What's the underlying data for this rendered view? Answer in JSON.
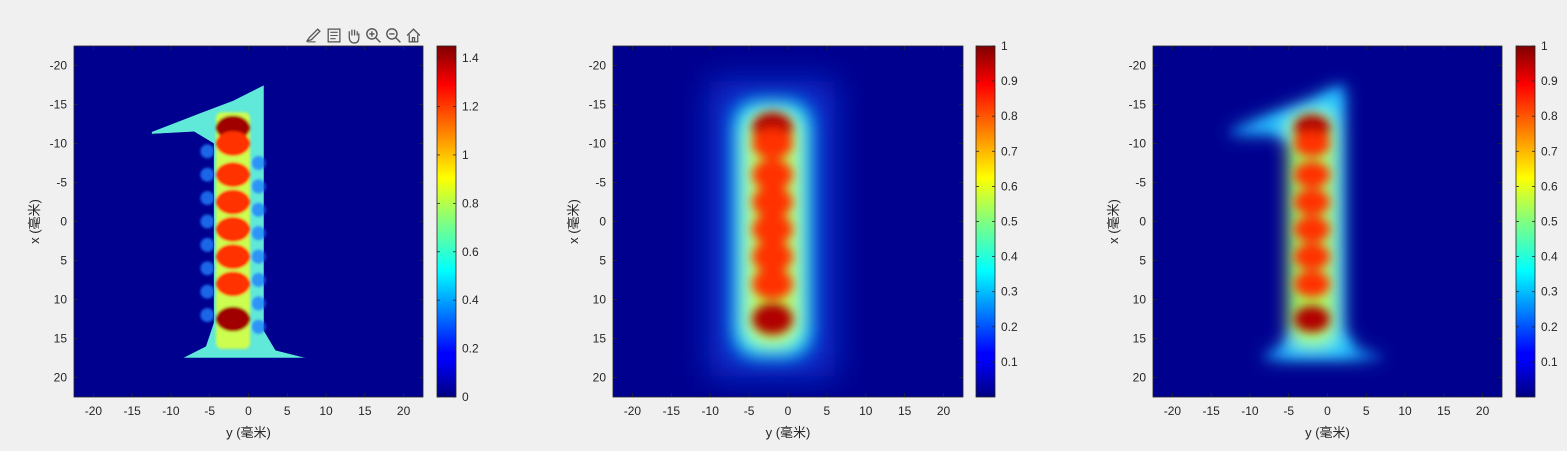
{
  "toolbar": {
    "tools": [
      {
        "icon": "brush-icon",
        "name": "brush"
      },
      {
        "icon": "datatip-icon",
        "name": "data-tips"
      },
      {
        "icon": "pan-hand-icon",
        "name": "pan"
      },
      {
        "icon": "zoom-in-icon",
        "name": "zoom-in"
      },
      {
        "icon": "zoom-out-icon",
        "name": "zoom-out"
      },
      {
        "icon": "home-icon",
        "name": "restore-view"
      }
    ]
  },
  "chart_data": [
    {
      "type": "heatmap",
      "xlabel": "y (毫米)",
      "ylabel": "x (毫米)",
      "xlim": [
        -22.5,
        22.5
      ],
      "ylim": [
        -22.5,
        22.5
      ],
      "y_reversed": true,
      "xticks": [
        "-20",
        "-15",
        "-10",
        "-5",
        "0",
        "5",
        "10",
        "15",
        "20"
      ],
      "yticks": [
        "-20",
        "-15",
        "-10",
        "-5",
        "0",
        "5",
        "10",
        "15",
        "20"
      ],
      "colormap": "jet",
      "clim": [
        0,
        1.45
      ],
      "colorbar_ticks": [
        "0",
        "0.2",
        "0.4",
        "0.6",
        "0.8",
        "1",
        "1.2",
        "1.4"
      ],
      "description": "sharp digit '1' mask, peaks ~1.45 along center x from -12 to 13"
    },
    {
      "type": "heatmap",
      "xlabel": "y (毫米)",
      "ylabel": "x (毫米)",
      "xlim": [
        -22.5,
        22.5
      ],
      "ylim": [
        -22.5,
        22.5
      ],
      "y_reversed": true,
      "xticks": [
        "-20",
        "-15",
        "-10",
        "-5",
        "0",
        "5",
        "10",
        "15",
        "20"
      ],
      "yticks": [
        "-20",
        "-15",
        "-10",
        "-5",
        "0",
        "5",
        "10",
        "15",
        "20"
      ],
      "colormap": "jet",
      "clim": [
        0,
        1
      ],
      "colorbar_ticks": [
        "0.1",
        "0.2",
        "0.3",
        "0.4",
        "0.5",
        "0.6",
        "0.7",
        "0.8",
        "0.9",
        "1"
      ],
      "description": "blurred vertical bar, normalized"
    },
    {
      "type": "heatmap",
      "xlabel": "y (毫米)",
      "ylabel": "x (毫米)",
      "xlim": [
        -22.5,
        22.5
      ],
      "ylim": [
        -22.5,
        22.5
      ],
      "y_reversed": true,
      "xticks": [
        "-20",
        "-15",
        "-10",
        "-5",
        "0",
        "5",
        "10",
        "15",
        "20"
      ],
      "yticks": [
        "-20",
        "-15",
        "-10",
        "-5",
        "0",
        "5",
        "10",
        "15",
        "20"
      ],
      "colormap": "jet",
      "clim": [
        0,
        1
      ],
      "colorbar_ticks": [
        "0.1",
        "0.2",
        "0.3",
        "0.4",
        "0.5",
        "0.6",
        "0.7",
        "0.8",
        "0.9",
        "1"
      ],
      "description": "reconstructed digit '1', normalized"
    }
  ]
}
